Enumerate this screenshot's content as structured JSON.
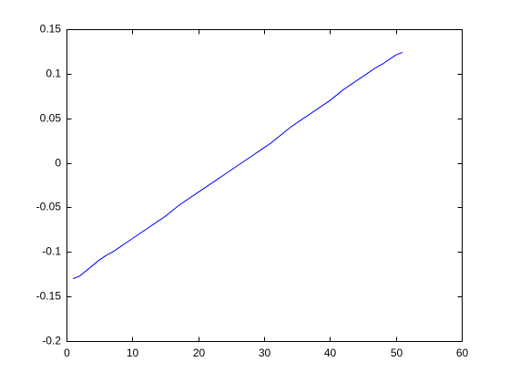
{
  "chart_data": {
    "type": "line",
    "title": "",
    "xlabel": "",
    "ylabel": "",
    "xlim": [
      0,
      60
    ],
    "ylim": [
      -0.2,
      0.15
    ],
    "xticks": [
      0,
      10,
      20,
      30,
      40,
      50,
      60
    ],
    "yticks": [
      -0.2,
      -0.15,
      -0.1,
      -0.05,
      0,
      0.05,
      0.1,
      0.15
    ],
    "xtick_labels": [
      "0",
      "10",
      "20",
      "30",
      "40",
      "50",
      "60"
    ],
    "ytick_labels": [
      "-0.2",
      "-0.15",
      "-0.1",
      "-0.05",
      "0",
      "0.05",
      "0.1",
      "0.15"
    ],
    "grid": false,
    "legend": false,
    "series": [
      {
        "color": "#0000ff",
        "x": [
          1,
          2,
          3,
          4,
          5,
          6,
          7,
          8,
          9,
          10,
          11,
          12,
          13,
          14,
          15,
          16,
          17,
          18,
          19,
          20,
          21,
          22,
          23,
          24,
          25,
          26,
          27,
          28,
          29,
          30,
          31,
          32,
          33,
          34,
          35,
          36,
          37,
          38,
          39,
          40,
          41,
          42,
          43,
          44,
          45,
          46,
          47,
          48,
          49,
          50,
          51
        ],
        "y": [
          -0.13,
          -0.127,
          -0.121,
          -0.115,
          -0.109,
          -0.104,
          -0.1,
          -0.095,
          -0.09,
          -0.085,
          -0.08,
          -0.075,
          -0.07,
          -0.065,
          -0.06,
          -0.054,
          -0.048,
          -0.043,
          -0.038,
          -0.033,
          -0.028,
          -0.023,
          -0.018,
          -0.013,
          -0.008,
          -0.003,
          0.002,
          0.007,
          0.012,
          0.017,
          0.022,
          0.028,
          0.034,
          0.04,
          0.045,
          0.05,
          0.055,
          0.06,
          0.065,
          0.07,
          0.076,
          0.082,
          0.087,
          0.092,
          0.097,
          0.102,
          0.107,
          0.111,
          0.116,
          0.121,
          0.124
        ]
      }
    ]
  }
}
